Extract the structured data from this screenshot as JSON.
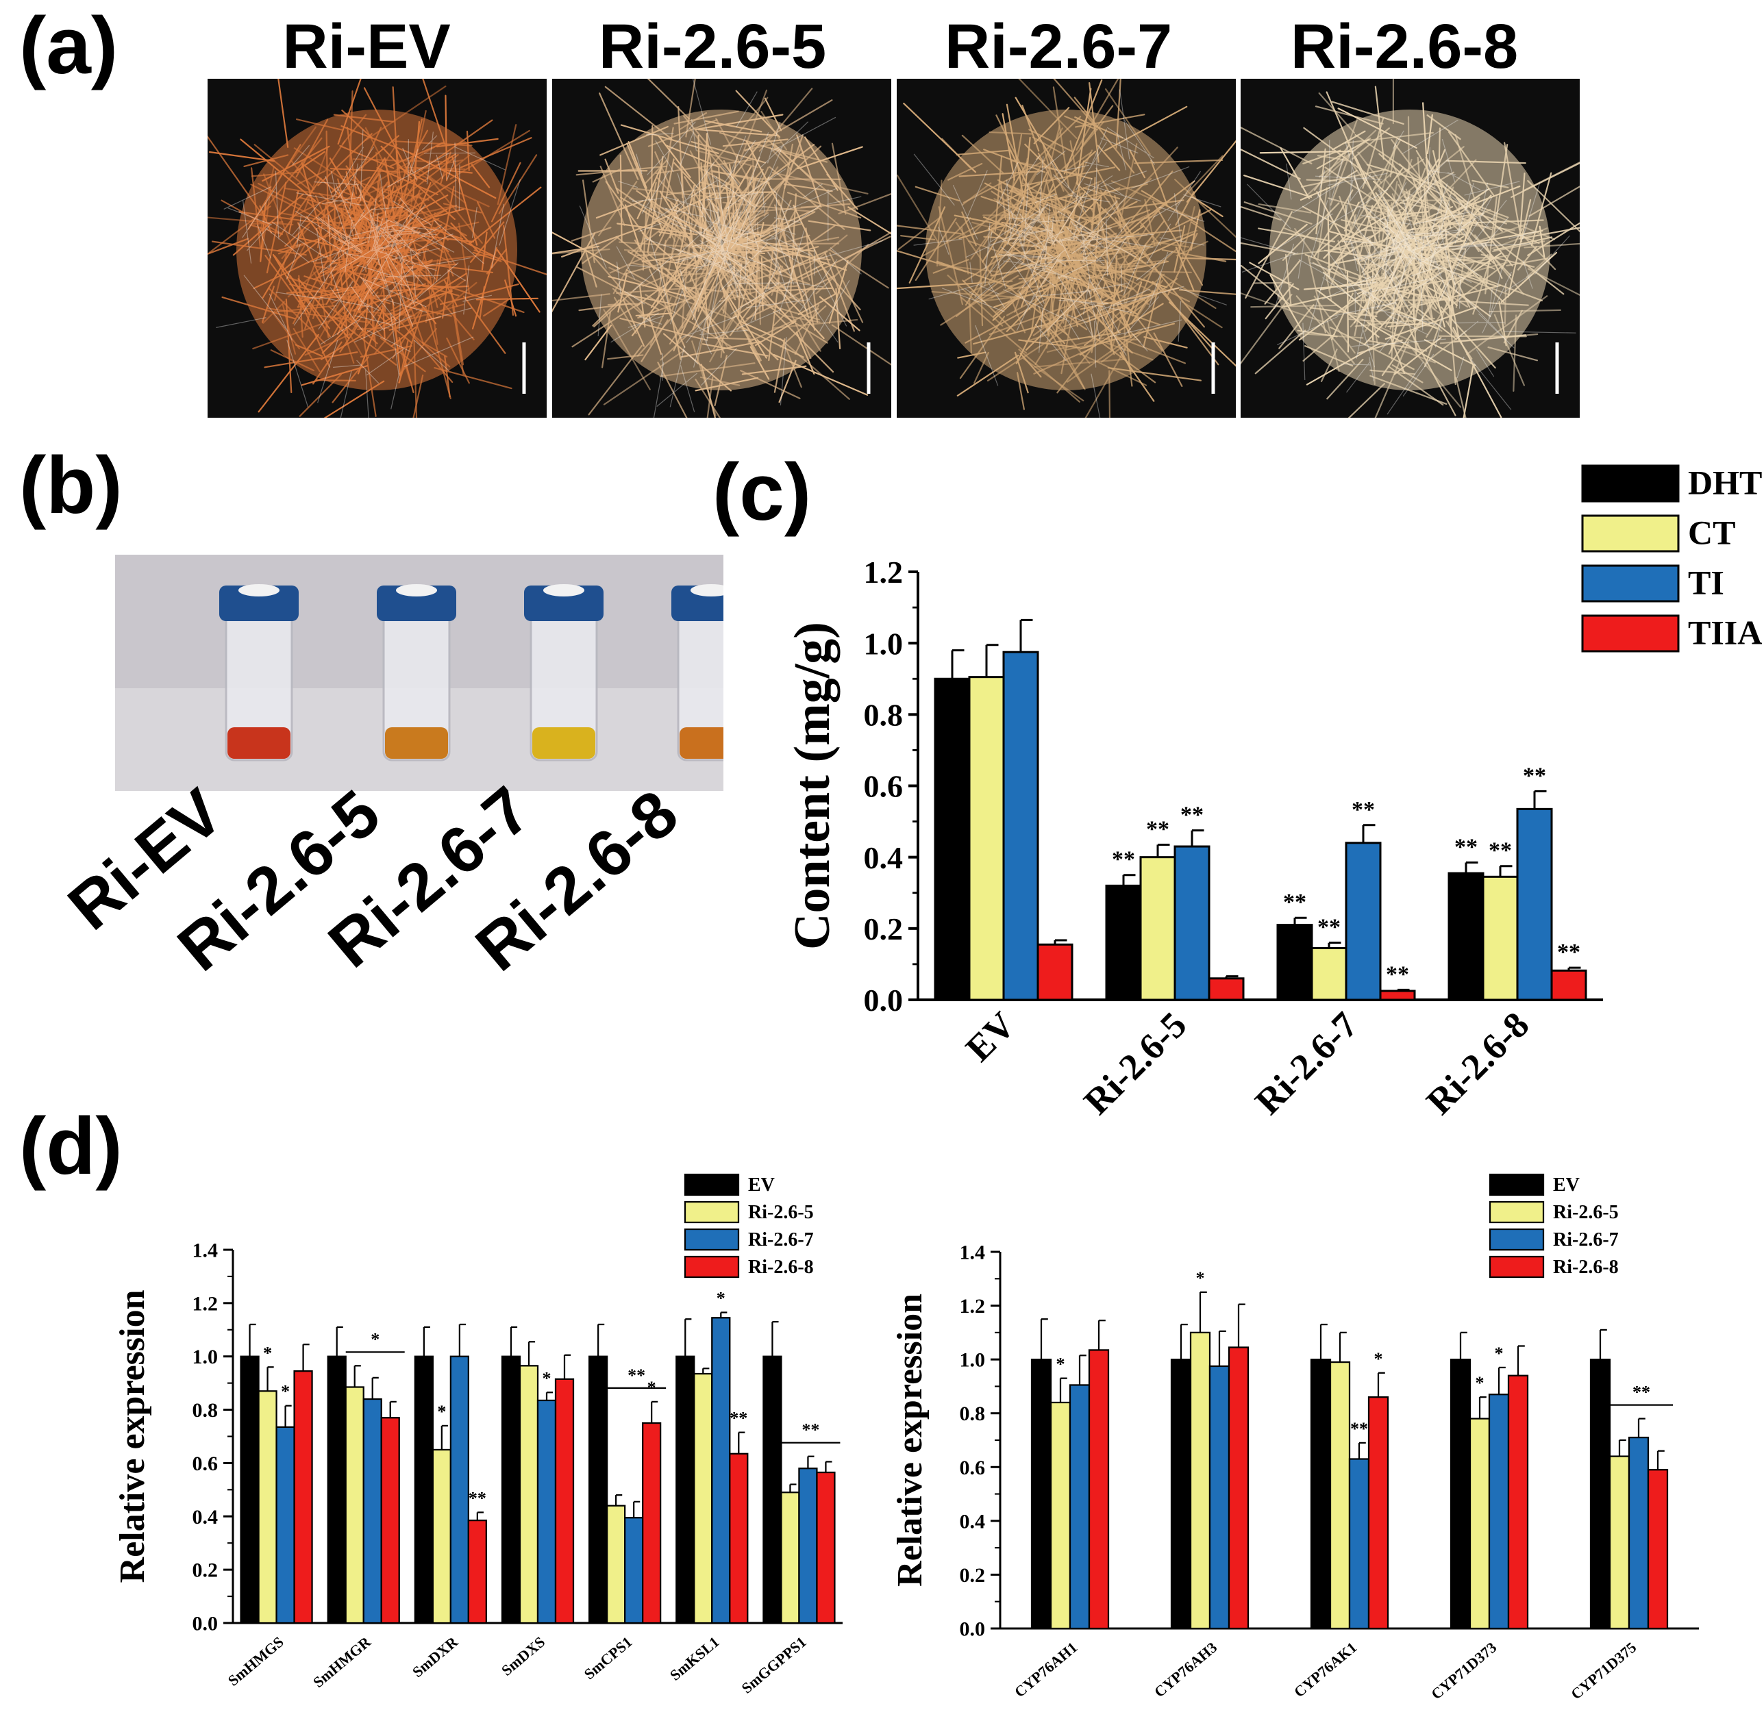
{
  "panel_labels": {
    "a": "(a)",
    "b": "(b)",
    "c": "(c)",
    "d": "(d)"
  },
  "panel_a": {
    "titles": [
      "Ri-EV",
      "Ri-2.6-5",
      "Ri-2.6-7",
      "Ri-2.6-8"
    ],
    "colors": [
      "#d9773a",
      "#e0b98c",
      "#d2a876",
      "#e8d3b0"
    ]
  },
  "panel_b": {
    "vial_labels": [
      "Ri-EV",
      "Ri-2.6-5",
      "Ri-2.6-7",
      "Ri-2.6-8"
    ],
    "liquid_colors": [
      "#c8341c",
      "#c97a1e",
      "#d9b21e",
      "#c9701e"
    ],
    "cap_color": "#1f4f8f"
  },
  "chart_data": [
    {
      "id": "c",
      "type": "bar",
      "title": "",
      "xlabel": "",
      "ylabel": "Content (mg/g)",
      "ylim": [
        0.0,
        1.2
      ],
      "yticks": [
        "0.0",
        "0.2",
        "0.4",
        "0.6",
        "0.8",
        "1.0",
        "1.2"
      ],
      "categories": [
        "EV",
        "Ri-2.6-5",
        "Ri-2.6-7",
        "Ri-2.6-8"
      ],
      "legend_position": "top-right",
      "series": [
        {
          "name": "DHT",
          "color": "#000000",
          "values": [
            0.9,
            0.32,
            0.21,
            0.355
          ],
          "errors": [
            0.08,
            0.03,
            0.02,
            0.03
          ],
          "sig": [
            "",
            "**",
            "**",
            "**"
          ]
        },
        {
          "name": "CT",
          "color": "#f0f08a",
          "values": [
            0.905,
            0.4,
            0.145,
            0.345
          ],
          "errors": [
            0.09,
            0.035,
            0.015,
            0.03
          ],
          "sig": [
            "",
            "**",
            "**",
            "**"
          ]
        },
        {
          "name": "TI",
          "color": "#1f6fb8",
          "values": [
            0.975,
            0.43,
            0.44,
            0.535
          ],
          "errors": [
            0.09,
            0.045,
            0.05,
            0.05
          ],
          "sig": [
            "",
            "**",
            "**",
            "**"
          ]
        },
        {
          "name": "TIIA",
          "color": "#ee1c1c",
          "values": [
            0.155,
            0.06,
            0.025,
            0.082
          ],
          "errors": [
            0.012,
            0.006,
            0.003,
            0.008
          ],
          "sig": [
            "",
            "",
            "**",
            "**"
          ]
        }
      ]
    },
    {
      "id": "d-left",
      "type": "bar",
      "title": "",
      "xlabel": "",
      "ylabel": "Relative expression",
      "ylim": [
        0.0,
        1.4
      ],
      "yticks": [
        "0.0",
        "0.2",
        "0.4",
        "0.6",
        "0.8",
        "1.0",
        "1.2",
        "1.4"
      ],
      "categories": [
        "SmHMGS",
        "SmHMGR",
        "SmDXR",
        "SmDXS",
        "SmCPS1",
        "SmKSL1",
        "SmGGPPS1"
      ],
      "legend_position": "top-right",
      "series": [
        {
          "name": "EV",
          "color": "#000000",
          "values": [
            1.0,
            1.0,
            1.0,
            1.0,
            1.0,
            1.0,
            1.0
          ],
          "errors": [
            0.12,
            0.11,
            0.11,
            0.11,
            0.12,
            0.14,
            0.13
          ],
          "sig": [
            "",
            "",
            "",
            "",
            "",
            "",
            ""
          ]
        },
        {
          "name": "Ri-2.6-5",
          "color": "#f0f08a",
          "values": [
            0.87,
            0.885,
            0.65,
            0.965,
            0.44,
            0.935,
            0.49
          ],
          "errors": [
            0.09,
            0.08,
            0.09,
            0.09,
            0.04,
            0.02,
            0.03
          ],
          "sig": [
            "*",
            "",
            "*",
            "",
            "",
            "",
            ""
          ]
        },
        {
          "name": "Ri-2.6-7",
          "color": "#1f6fb8",
          "values": [
            0.735,
            0.84,
            1.0,
            0.835,
            0.395,
            1.145,
            0.58
          ],
          "errors": [
            0.08,
            0.08,
            0.12,
            0.03,
            0.06,
            0.02,
            0.045
          ],
          "sig": [
            "*",
            "",
            "",
            "*",
            "",
            "*",
            ""
          ]
        },
        {
          "name": "Ri-2.6-8",
          "color": "#ee1c1c",
          "values": [
            0.945,
            0.77,
            0.385,
            0.915,
            0.75,
            0.635,
            0.565
          ],
          "errors": [
            0.1,
            0.06,
            0.03,
            0.09,
            0.08,
            0.08,
            0.04
          ],
          "sig": [
            "",
            "",
            "**",
            "",
            "*",
            "**",
            ""
          ]
        }
      ],
      "group_sig": [
        {
          "category_index": 1,
          "label": "*"
        },
        {
          "category_index": 4,
          "label": "**"
        },
        {
          "category_index": 6,
          "label": "**"
        }
      ]
    },
    {
      "id": "d-right",
      "type": "bar",
      "title": "",
      "xlabel": "",
      "ylabel": "Relative expression",
      "ylim": [
        0.0,
        1.4
      ],
      "yticks": [
        "0.0",
        "0.2",
        "0.4",
        "0.6",
        "0.8",
        "1.0",
        "1.2",
        "1.4"
      ],
      "categories": [
        "CYP76AH1",
        "CYP76AH3",
        "CYP76AK1",
        "CYP71D373",
        "CYP71D375"
      ],
      "legend_position": "top-right",
      "series": [
        {
          "name": "EV",
          "color": "#000000",
          "values": [
            1.0,
            1.0,
            1.0,
            1.0,
            1.0
          ],
          "errors": [
            0.15,
            0.13,
            0.13,
            0.1,
            0.11
          ],
          "sig": [
            "",
            "",
            "",
            "",
            ""
          ]
        },
        {
          "name": "Ri-2.6-5",
          "color": "#f0f08a",
          "values": [
            0.84,
            1.1,
            0.99,
            0.78,
            0.64
          ],
          "errors": [
            0.09,
            0.15,
            0.11,
            0.08,
            0.06
          ],
          "sig": [
            "*",
            "*",
            "",
            "*",
            ""
          ]
        },
        {
          "name": "Ri-2.6-7",
          "color": "#1f6fb8",
          "values": [
            0.905,
            0.975,
            0.63,
            0.87,
            0.71
          ],
          "errors": [
            0.11,
            0.13,
            0.06,
            0.1,
            0.07
          ],
          "sig": [
            "",
            "",
            "**",
            "*",
            ""
          ]
        },
        {
          "name": "Ri-2.6-8",
          "color": "#ee1c1c",
          "values": [
            1.035,
            1.045,
            0.86,
            0.94,
            0.59
          ],
          "errors": [
            0.11,
            0.16,
            0.09,
            0.11,
            0.07
          ],
          "sig": [
            "",
            "",
            "*",
            "",
            ""
          ]
        }
      ],
      "group_sig": [
        {
          "category_index": 4,
          "label": "**"
        }
      ]
    }
  ]
}
